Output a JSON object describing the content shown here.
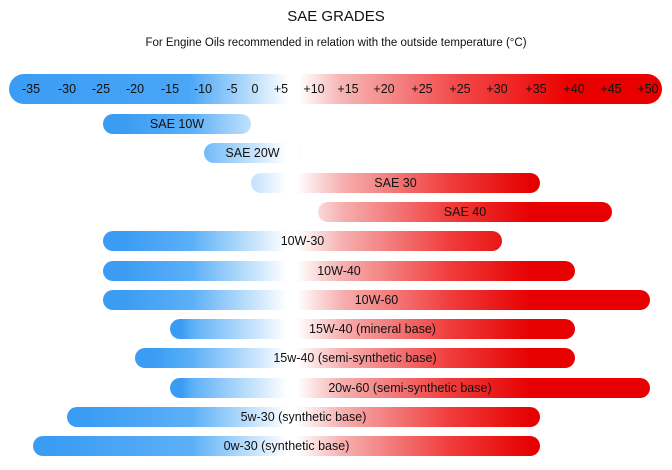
{
  "chart_data": {
    "type": "range-bar",
    "title": "SAE GRADES",
    "subtitle": "For Engine Oils recommended in relation with the outside temperature (°C)",
    "scale_labels": [
      "-35",
      "-30",
      "-25",
      "-20",
      "-15",
      "-10",
      "-5",
      "0",
      "+5",
      "+10",
      "+15",
      "+20",
      "+25",
      "+25",
      "+30",
      "+35",
      "+40",
      "+45",
      "+50"
    ],
    "colors": {
      "cold": "#3b9cf4",
      "neutral": "#ffffff",
      "hot": "#e60000"
    },
    "bars": [
      {
        "label": "SAE 10W",
        "from": -25,
        "to": 0
      },
      {
        "label": "SAE 20W",
        "from": -10,
        "to": 5
      },
      {
        "label": "SAE 30",
        "from": 0,
        "to": 35
      },
      {
        "label": "SAE 40",
        "from": 10,
        "to": 45
      },
      {
        "label": "10W-30",
        "from": -25,
        "to": 30
      },
      {
        "label": "10W-40",
        "from": -25,
        "to": 40
      },
      {
        "label": "10W-60",
        "from": -25,
        "to": 50
      },
      {
        "label": "15W-40 (mineral base)",
        "from": -15,
        "to": 40
      },
      {
        "label": "15w-40 (semi-synthetic base)",
        "from": -20,
        "to": 40
      },
      {
        "label": "20w-60 (semi-synthetic base)",
        "from": -15,
        "to": 50
      },
      {
        "label": "5w-30 (synthetic base)",
        "from": -30,
        "to": 35
      },
      {
        "label": "0w-30 (synthetic base)",
        "from": -35,
        "to": 35
      }
    ]
  }
}
